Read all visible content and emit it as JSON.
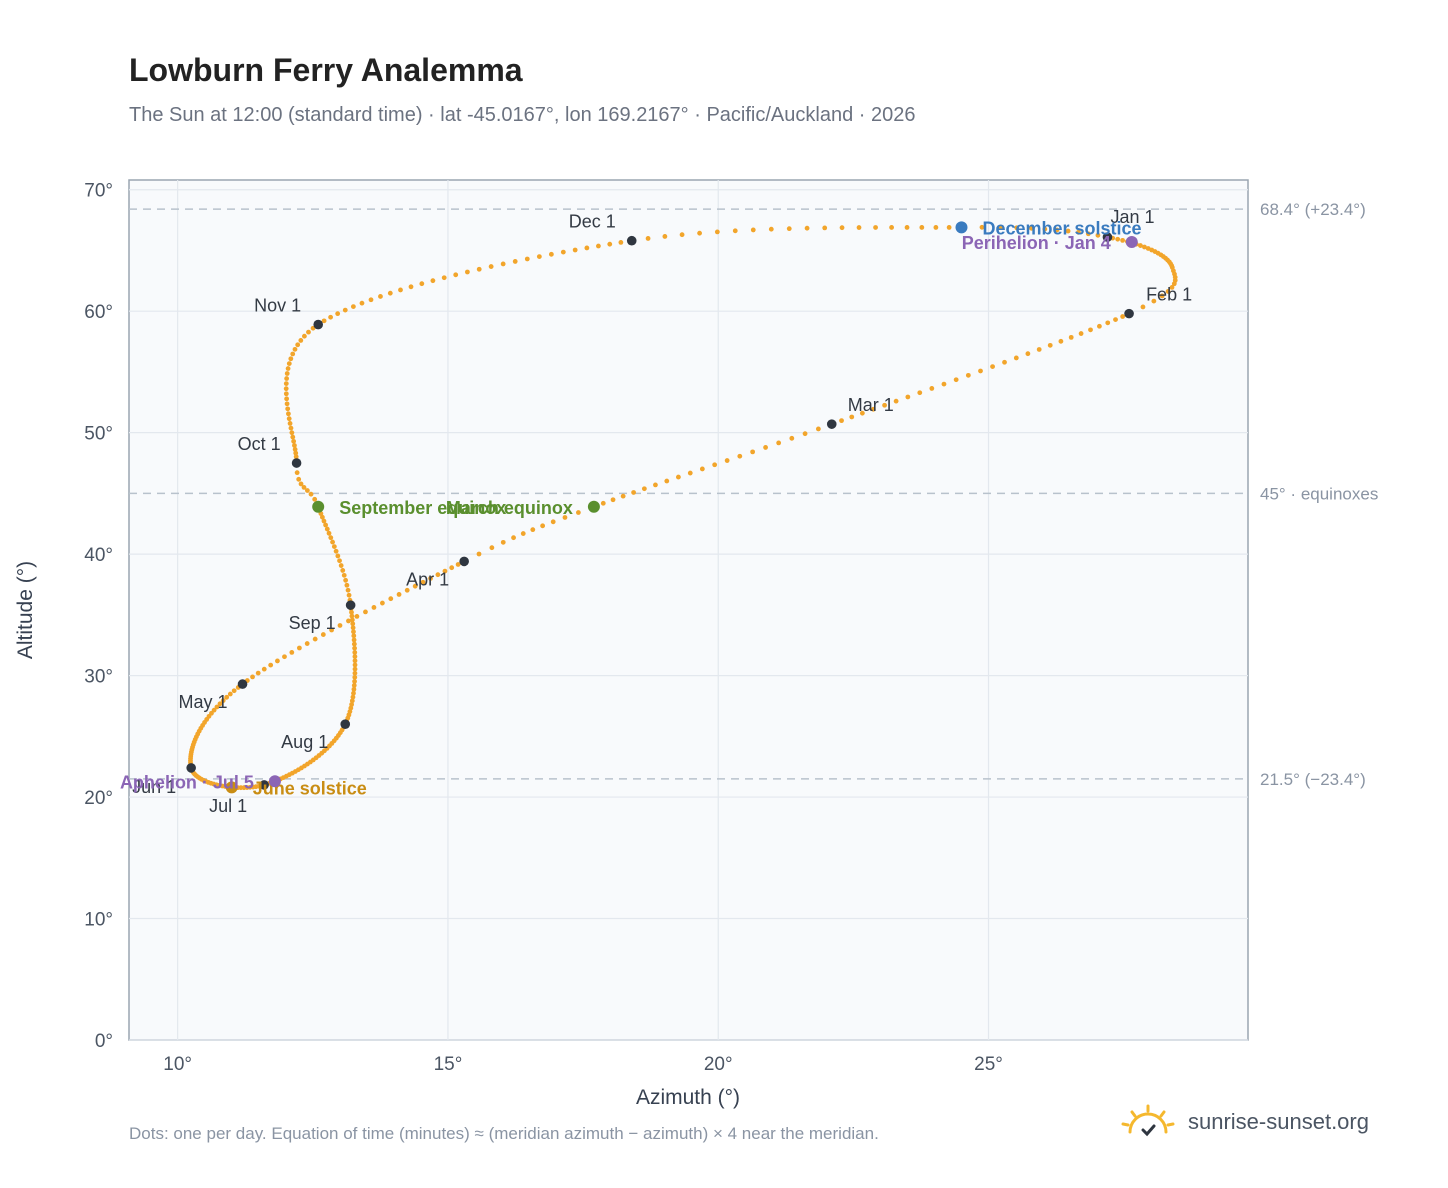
{
  "header": {
    "title": "Lowburn Ferry Analemma",
    "subtitle": "The Sun at 12:00 (standard time) · lat -45.0167°, lon 169.2167° · Pacific/Auckland · 2026"
  },
  "footer": {
    "note": "Dots: one per day. Equation of time (minutes) ≈ (meridian azimuth − azimuth) × 4 near the meridian.",
    "brand": "sunrise-sunset.org",
    "brand_icon": "sun-logo-icon"
  },
  "colors": {
    "curve": "#f2a52b",
    "month_marker": "#2f3640",
    "equinox": "#5a8f2e",
    "december_solstice": "#3a7bbf",
    "june_solstice": "#c98d14",
    "apsis": "#8b65b5",
    "reference_line": "#b8c2cc",
    "plot_background": "#f8fafc"
  },
  "chart_data": {
    "type": "scatter",
    "xlabel": "Azimuth (°)",
    "ylabel": "Altitude (°)",
    "xlim": [
      9.1,
      29.8
    ],
    "ylim": [
      0,
      70.8
    ],
    "x_ticks": [
      "10°",
      "15°",
      "20°",
      "25°"
    ],
    "x_tick_values": [
      10,
      15,
      20,
      25
    ],
    "y_ticks": [
      "0°",
      "10°",
      "20°",
      "30°",
      "40°",
      "50°",
      "60°",
      "70°"
    ],
    "y_tick_values": [
      0,
      10,
      20,
      30,
      40,
      50,
      60,
      70
    ],
    "grid": true,
    "series": [
      {
        "name": "",
        "style": "daily-dots",
        "knots": [
          {
            "x": 27.2,
            "y": 66.1
          },
          {
            "x": 28.4,
            "y": 63.6
          },
          {
            "x": 27.6,
            "y": 59.8
          },
          {
            "x": 22.1,
            "y": 50.7
          },
          {
            "x": 17.7,
            "y": 43.9
          },
          {
            "x": 15.3,
            "y": 39.4
          },
          {
            "x": 11.2,
            "y": 29.3
          },
          {
            "x": 10.25,
            "y": 22.4
          },
          {
            "x": 11.6,
            "y": 21.0
          },
          {
            "x": 13.1,
            "y": 26.0
          },
          {
            "x": 13.2,
            "y": 35.8
          },
          {
            "x": 12.6,
            "y": 43.9
          },
          {
            "x": 12.2,
            "y": 47.5
          },
          {
            "x": 12.6,
            "y": 58.9
          },
          {
            "x": 18.4,
            "y": 65.8
          },
          {
            "x": 24.5,
            "y": 66.9
          },
          {
            "x": 27.2,
            "y": 66.1
          }
        ],
        "knot_days": [
          0,
          20,
          31,
          59,
          79,
          90,
          120,
          151,
          181,
          212,
          243,
          265,
          273,
          304,
          334,
          354,
          365
        ]
      }
    ],
    "month_markers": [
      {
        "label": "Jan 1",
        "x": 27.2,
        "y": 66.1,
        "anchor": "start",
        "dx": 3,
        "dy": -14
      },
      {
        "label": "Feb 1",
        "x": 27.6,
        "y": 59.8,
        "anchor": "start",
        "dx": 17,
        "dy": -13
      },
      {
        "label": "Mar 1",
        "x": 22.1,
        "y": 50.7,
        "anchor": "start",
        "dx": 16,
        "dy": -13
      },
      {
        "label": "Apr 1",
        "x": 15.3,
        "y": 39.4,
        "anchor": "end",
        "dx": -15,
        "dy": 24
      },
      {
        "label": "May 1",
        "x": 11.2,
        "y": 29.3,
        "anchor": "end",
        "dx": -15,
        "dy": 24
      },
      {
        "label": "Jun 1",
        "x": 10.25,
        "y": 22.4,
        "anchor": "end",
        "dx": -15,
        "dy": 25
      },
      {
        "label": "Jul 1",
        "x": 11.6,
        "y": 21.0,
        "anchor": "end",
        "dx": -17,
        "dy": 27
      },
      {
        "label": "Aug 1",
        "x": 13.1,
        "y": 26.0,
        "anchor": "end",
        "dx": -17,
        "dy": 24
      },
      {
        "label": "Sep 1",
        "x": 13.2,
        "y": 35.8,
        "anchor": "end",
        "dx": -15,
        "dy": 24
      },
      {
        "label": "Oct 1",
        "x": 12.2,
        "y": 47.5,
        "anchor": "end",
        "dx": -16,
        "dy": -13
      },
      {
        "label": "Nov 1",
        "x": 12.6,
        "y": 58.9,
        "anchor": "end",
        "dx": -17,
        "dy": -13
      },
      {
        "label": "Dec 1",
        "x": 18.4,
        "y": 65.8,
        "anchor": "end",
        "dx": -16,
        "dy": -13
      }
    ],
    "events": [
      {
        "label": "December solstice",
        "x": 24.5,
        "y": 66.9,
        "color": "#3a7bbf",
        "anchor": "start",
        "dx": 21,
        "dy": 7
      },
      {
        "label": "Perihelion · Jan 4",
        "x": 27.65,
        "y": 65.7,
        "color": "#8b65b5",
        "anchor": "end",
        "dx": -21,
        "dy": 7
      },
      {
        "label": "March equinox",
        "x": 17.7,
        "y": 43.9,
        "color": "#5a8f2e",
        "anchor": "end",
        "dx": -21,
        "dy": 7
      },
      {
        "label": "September equinox",
        "x": 12.6,
        "y": 43.9,
        "color": "#5a8f2e",
        "anchor": "start",
        "dx": 21,
        "dy": 7
      },
      {
        "label": "June solstice",
        "x": 11.0,
        "y": 20.8,
        "color": "#c98d14",
        "anchor": "start",
        "dx": 21,
        "dy": 7
      },
      {
        "label": "Aphelion · Jul 5",
        "x": 11.8,
        "y": 21.3,
        "color": "#8b65b5",
        "anchor": "end",
        "dx": -21,
        "dy": 7
      }
    ],
    "reference_lines": [
      {
        "y": 68.4,
        "label": "68.4° (+23.4°)"
      },
      {
        "y": 45.0,
        "label": "45° · equinoxes"
      },
      {
        "y": 21.5,
        "label": "21.5° (−23.4°)"
      }
    ]
  }
}
